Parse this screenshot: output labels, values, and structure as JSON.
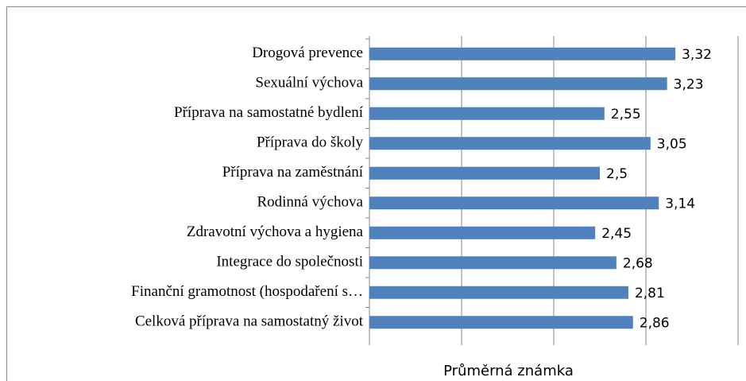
{
  "chart_data": {
    "type": "barh",
    "categories": [
      "Drogová prevence",
      "Sexuální výchova",
      "Příprava na samostatné bydlení",
      "Příprava do školy",
      "Příprava na zaměstnání",
      "Rodinná výchova",
      "Zdravotní výchova a hygiena",
      "Integrace do společnosti",
      "Finanční gramotnost (hospodaření s…",
      "Celková příprava na samostatný život"
    ],
    "values": [
      3.32,
      3.23,
      2.55,
      3.05,
      2.5,
      3.14,
      2.45,
      2.68,
      2.81,
      2.86
    ],
    "value_labels": [
      "3,32",
      "3,23",
      "2,55",
      "3,05",
      "2,5",
      "3,14",
      "2,45",
      "2,68",
      "2,81",
      "2,86"
    ],
    "color": "#4f81bd",
    "xlabel": "Průměrná známka",
    "xlim": [
      0,
      4
    ],
    "xticks": [
      0,
      1,
      2,
      3,
      4
    ],
    "grid": true
  }
}
